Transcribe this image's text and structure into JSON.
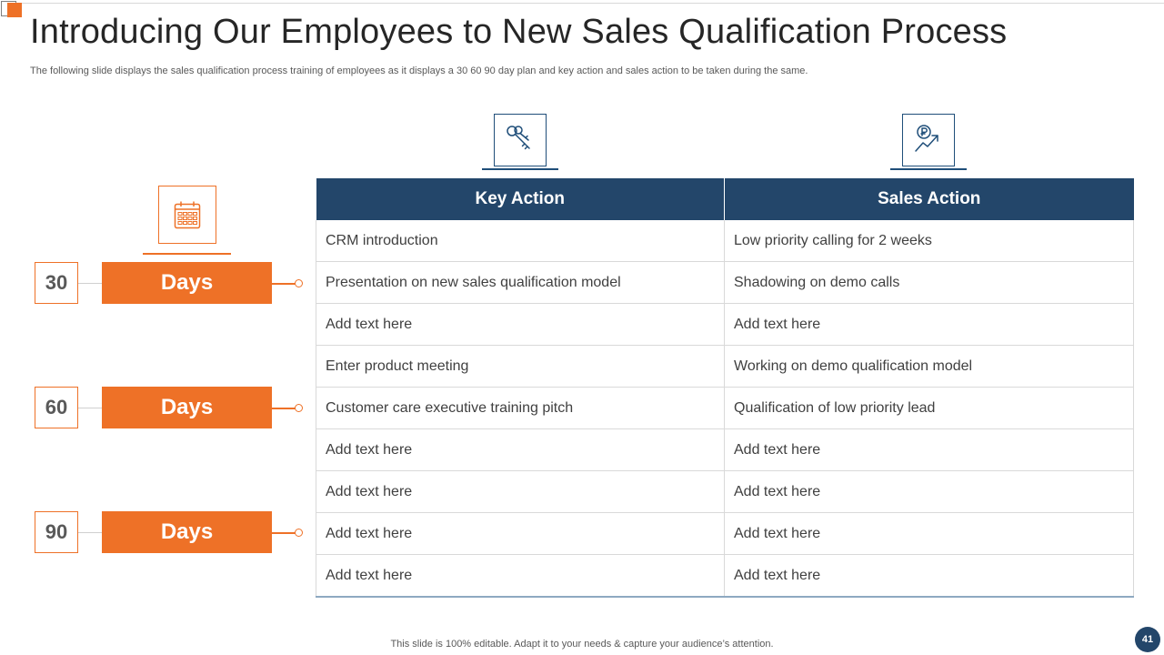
{
  "slide": {
    "title": "Introducing Our Employees to New Sales Qualification Process",
    "subtitle": "The following slide displays the sales qualification process training of employees as it displays a 30 60 90 day plan and key action and sales action to be taken during the same.",
    "footer_note": "This slide is 100% editable. Adapt it to your needs & capture your audience’s attention.",
    "page_number": "41"
  },
  "timeline": {
    "icon": "calendar-icon",
    "items": [
      {
        "number": "30",
        "label": "Days"
      },
      {
        "number": "60",
        "label": "Days"
      },
      {
        "number": "90",
        "label": "Days"
      }
    ]
  },
  "table": {
    "headers": [
      {
        "label": "Key Action",
        "icon": "keys-icon"
      },
      {
        "label": "Sales Action",
        "icon": "coin-growth-icon"
      }
    ],
    "rows": [
      [
        "CRM introduction",
        "Low priority calling for 2 weeks"
      ],
      [
        "Presentation on new sales qualification model",
        "Shadowing on demo calls"
      ],
      [
        "Add text here",
        "Add text here"
      ],
      [
        "Enter product meeting",
        "Working on demo qualification model"
      ],
      [
        "Customer care executive training pitch",
        "Qualification of low priority lead"
      ],
      [
        "Add text here",
        "Add text here"
      ],
      [
        "Add text here",
        "Add text here"
      ],
      [
        "Add text here",
        "Add text here"
      ],
      [
        "Add text here",
        "Add text here"
      ]
    ]
  },
  "colors": {
    "accent_orange": "#ee7127",
    "header_navy": "#23466a",
    "icon_navy": "#1f4e79"
  }
}
